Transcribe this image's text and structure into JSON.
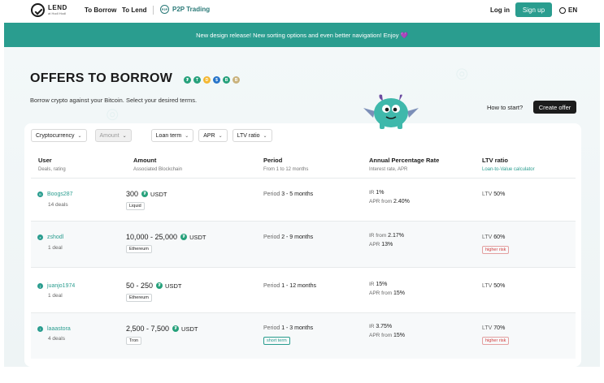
{
  "header": {
    "logo_title": "LEND",
    "logo_sub": "at Hodl Hodl",
    "nav_borrow": "To Borrow",
    "nav_lend": "To Lend",
    "p2p_label": "P2P Trading",
    "p2p_icon": "P2P",
    "login": "Log in",
    "signup": "Sign up",
    "lang": "EN"
  },
  "banner": "New design release! New sorting options and even better navigation! Enjoy 💜",
  "page": {
    "title": "OFFERS TO BORROW",
    "subtitle": "Borrow crypto against your Bitcoin. Select your desired terms.",
    "how_to": "How to start?",
    "create_offer": "Create offer",
    "coins": [
      {
        "symbol": "₮",
        "color": "#26a17b"
      },
      {
        "symbol": "T",
        "color": "#26a17b"
      },
      {
        "symbol": "D",
        "color": "#f4b731"
      },
      {
        "symbol": "$",
        "color": "#2775ca"
      },
      {
        "symbol": "B",
        "color": "#26a17b"
      },
      {
        "symbol": "B",
        "color": "#c9b27c"
      }
    ]
  },
  "filters": {
    "crypto": "Cryptocurrency",
    "amount": "Amount",
    "loan_term": "Loan term",
    "apr": "APR",
    "ltv": "LTV ratio"
  },
  "columns": {
    "user": "User",
    "user_sub": "Deals, rating",
    "amount": "Amount",
    "amount_sub": "Associated Blockchain",
    "period": "Period",
    "period_sub": "From 1 to 12 months",
    "apr": "Annual Percentage Rate",
    "apr_sub": "Interest rate, APR",
    "ltv": "LTV ratio",
    "ltv_sub": "Loan-to-Value calculator"
  },
  "rows": [
    {
      "badge": "B",
      "user": "Boogs287",
      "deals": "14 deals",
      "amount": "300",
      "currency": "USDT",
      "chain": "Liquid",
      "period_label": "Period",
      "period_value": "3 - 5 months",
      "tag": "",
      "ir_label": "IR",
      "ir": "1%",
      "apr_label": "APR from",
      "apr": "2.40%",
      "ltv_label": "LTV",
      "ltv": "50%",
      "risk": ""
    },
    {
      "badge": "z",
      "user": "zshodl",
      "deals": "1 deal",
      "amount": "10,000 - 25,000",
      "currency": "USDT",
      "chain": "Ethereum",
      "period_label": "Period",
      "period_value": "2 - 9 months",
      "tag": "",
      "ir_label": "IR from",
      "ir": "2.17%",
      "apr_label": "APR",
      "apr": "13%",
      "ltv_label": "LTV",
      "ltv": "60%",
      "risk": "higher risk"
    },
    {
      "badge": "j",
      "user": "juanjo1974",
      "deals": "1 deal",
      "amount": "50 - 250",
      "currency": "USDT",
      "chain": "Ethereum",
      "period_label": "Period",
      "period_value": "1 - 12 months",
      "tag": "",
      "ir_label": "IR",
      "ir": "15%",
      "apr_label": "APR from",
      "apr": "15%",
      "ltv_label": "LTV",
      "ltv": "50%",
      "risk": ""
    },
    {
      "badge": "l",
      "user": "laaastora",
      "deals": "4 deals",
      "amount": "2,500 - 7,500",
      "currency": "USDT",
      "chain": "Tron",
      "period_label": "Period",
      "period_value": "1 - 3 months",
      "tag": "short term",
      "ir_label": "IR",
      "ir": "3.75%",
      "apr_label": "APR from",
      "apr": "15%",
      "ltv_label": "LTV",
      "ltv": "70%",
      "risk": "higher risk"
    }
  ]
}
